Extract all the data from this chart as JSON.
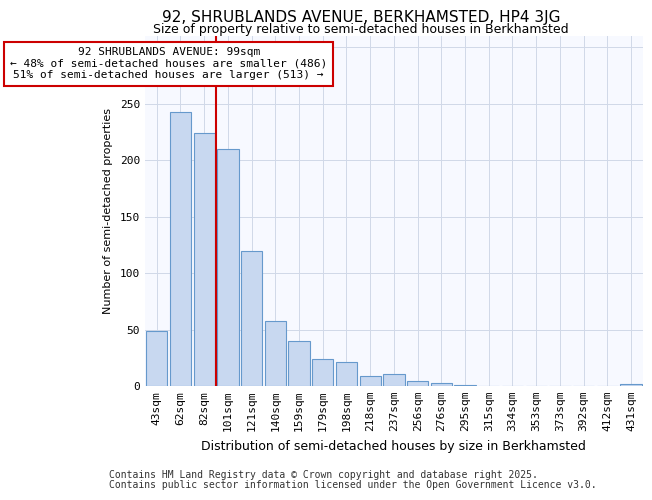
{
  "title1": "92, SHRUBLANDS AVENUE, BERKHAMSTED, HP4 3JG",
  "title2": "Size of property relative to semi-detached houses in Berkhamsted",
  "xlabel": "Distribution of semi-detached houses by size in Berkhamsted",
  "ylabel": "Number of semi-detached properties",
  "categories": [
    "43sqm",
    "62sqm",
    "82sqm",
    "101sqm",
    "121sqm",
    "140sqm",
    "159sqm",
    "179sqm",
    "198sqm",
    "218sqm",
    "237sqm",
    "256sqm",
    "276sqm",
    "295sqm",
    "315sqm",
    "334sqm",
    "353sqm",
    "373sqm",
    "392sqm",
    "412sqm",
    "431sqm"
  ],
  "values": [
    49,
    243,
    224,
    210,
    120,
    58,
    40,
    24,
    21,
    9,
    11,
    4,
    3,
    1,
    0,
    0,
    0,
    0,
    0,
    0,
    2
  ],
  "bar_color": "#c8d8f0",
  "bar_edge_color": "#6699cc",
  "vline_color": "#cc0000",
  "vline_index": 3,
  "annotation_text": "92 SHRUBLANDS AVENUE: 99sqm\n← 48% of semi-detached houses are smaller (486)\n51% of semi-detached houses are larger (513) →",
  "annotation_box_facecolor": "#ffffff",
  "annotation_box_edgecolor": "#cc0000",
  "ylim": [
    0,
    310
  ],
  "yticks": [
    0,
    50,
    100,
    150,
    200,
    250,
    300
  ],
  "footnote1": "Contains HM Land Registry data © Crown copyright and database right 2025.",
  "footnote2": "Contains public sector information licensed under the Open Government Licence v3.0.",
  "bg_color": "#ffffff",
  "plot_bg_color": "#f7f9ff",
  "grid_color": "#d0d8e8",
  "title1_fontsize": 11,
  "title2_fontsize": 9,
  "xlabel_fontsize": 9,
  "ylabel_fontsize": 8,
  "tick_fontsize": 8,
  "annot_fontsize": 8,
  "footnote_fontsize": 7
}
